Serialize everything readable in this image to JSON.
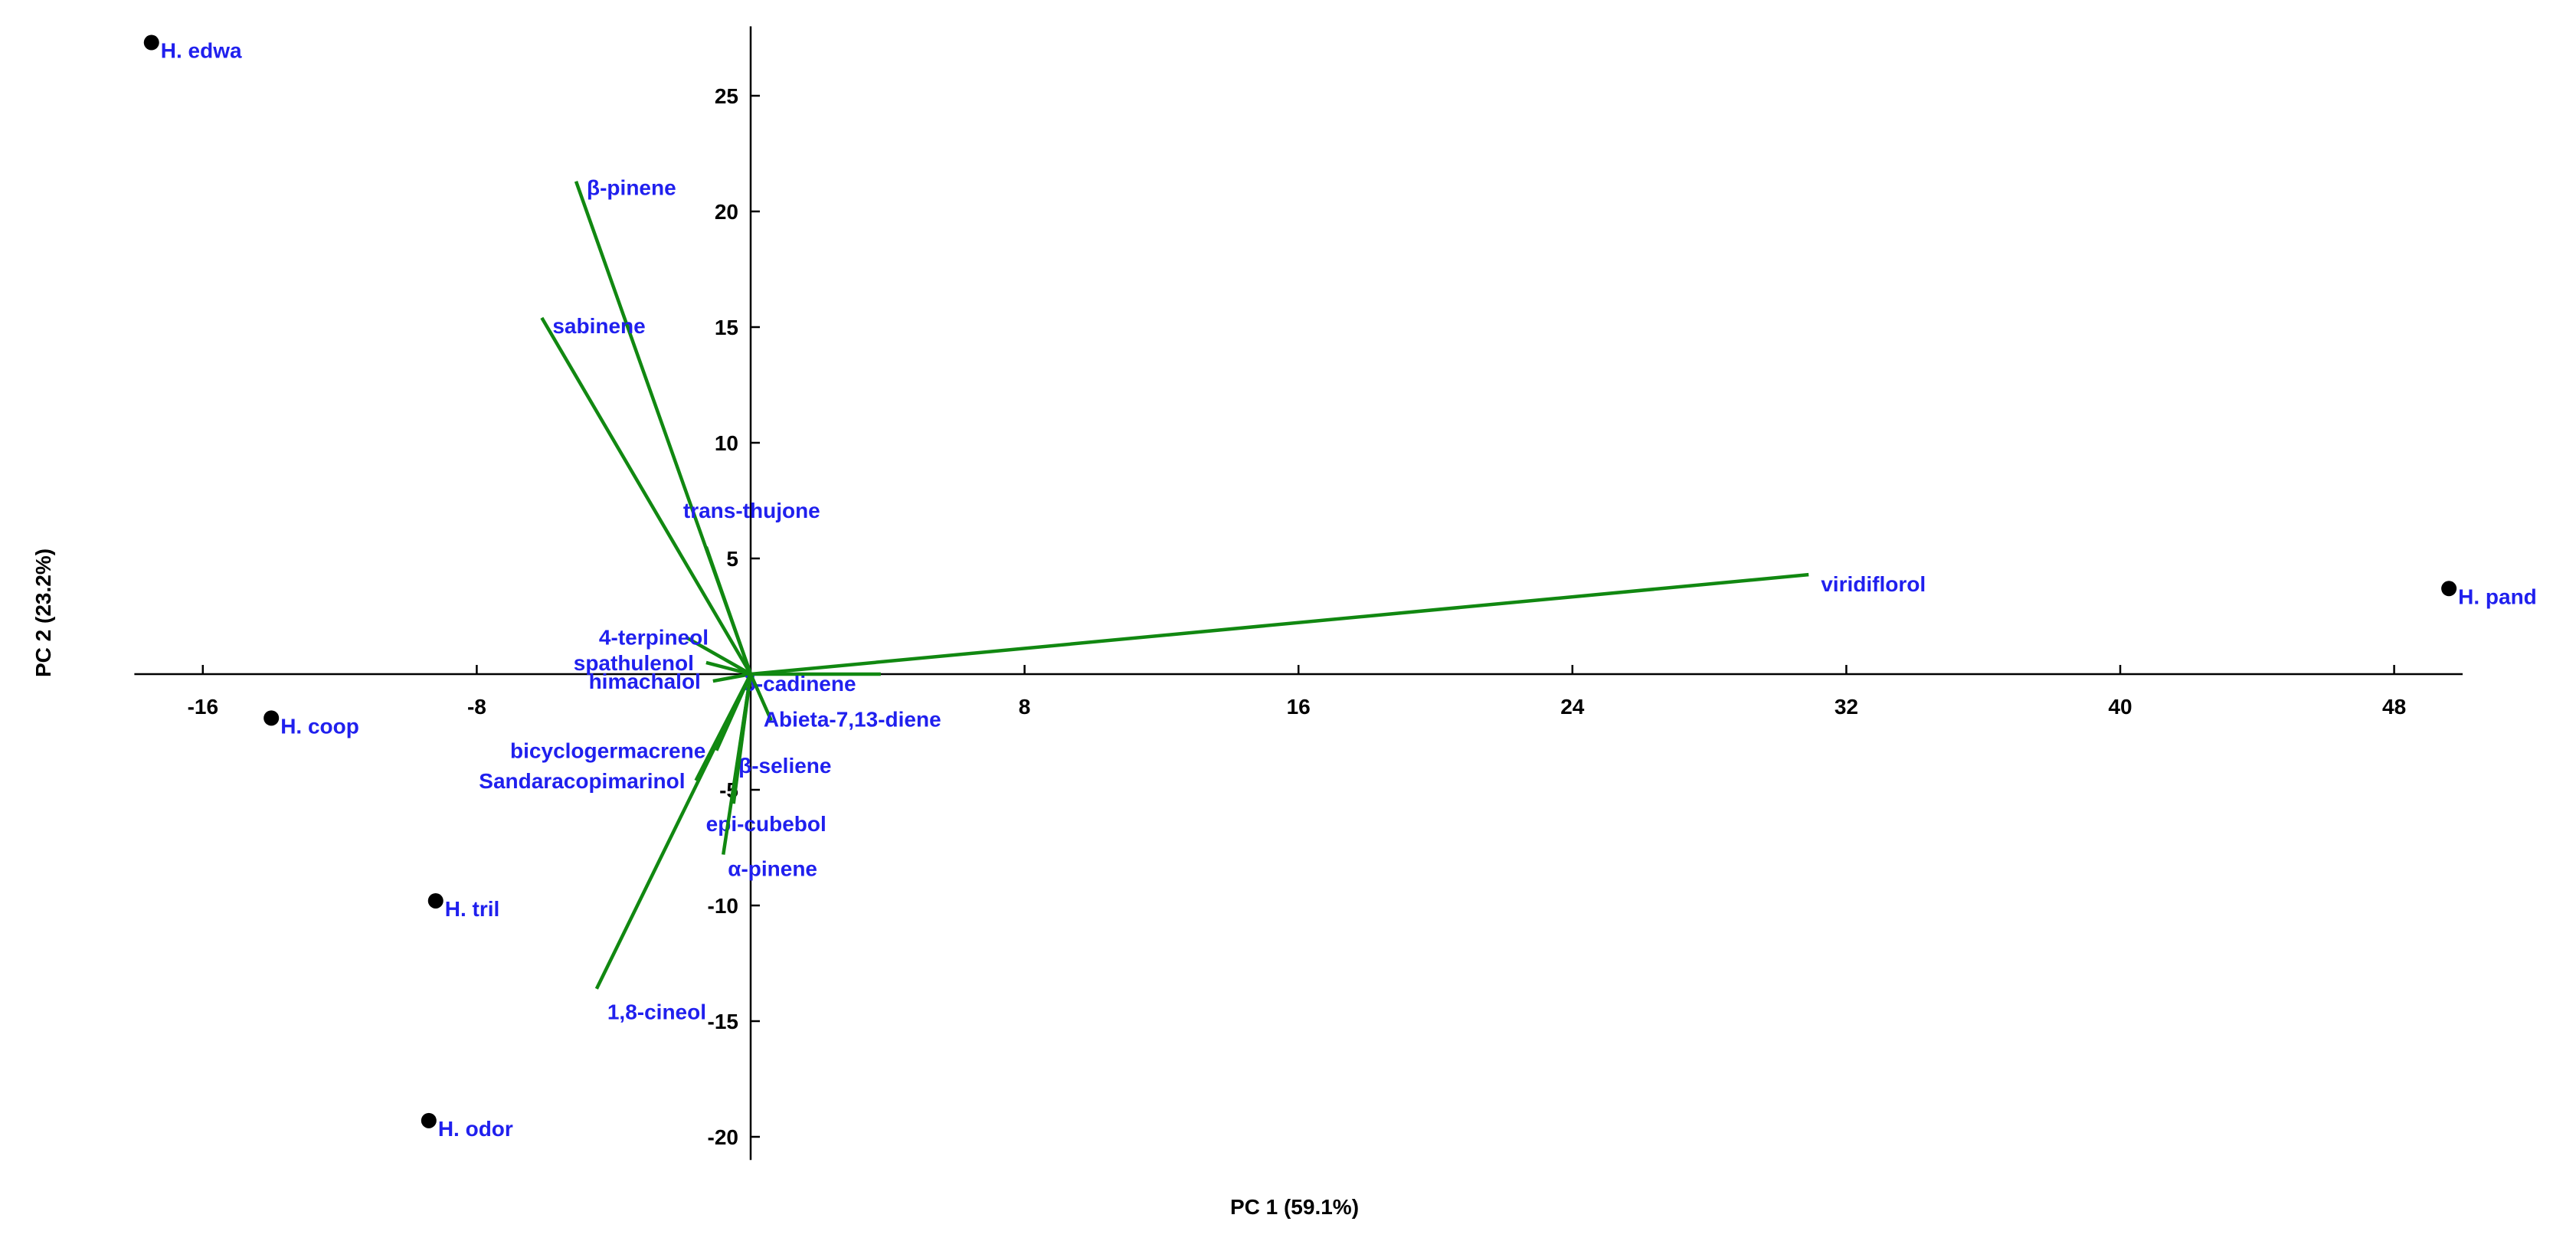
{
  "chart_data": {
    "type": "scatter",
    "subtype": "pca-biplot",
    "xlabel": "PC 1 (59.1%)",
    "ylabel": "PC 2 (23.2%)",
    "xlim": [
      -18,
      50
    ],
    "ylim": [
      -21,
      28
    ],
    "x_ticks": [
      -16,
      -8,
      8,
      16,
      24,
      32,
      40,
      48
    ],
    "y_ticks": [
      -20,
      -15,
      -10,
      -5,
      5,
      10,
      15,
      20,
      25
    ],
    "grid": false,
    "points_color": "#000000",
    "label_color": "#2020ee",
    "vector_color": "#118811",
    "points": [
      {
        "label": "H. edwa",
        "x": -17.5,
        "y": 27.3
      },
      {
        "label": "H. coop",
        "x": -14.0,
        "y": -1.9
      },
      {
        "label": "H. tril",
        "x": -9.2,
        "y": -9.8
      },
      {
        "label": "H. odor",
        "x": -9.4,
        "y": -19.3
      },
      {
        "label": "H. pand",
        "x": 49.6,
        "y": 3.7
      }
    ],
    "vectors": [
      {
        "label": "β-pinene",
        "x": -5.1,
        "y": 21.3
      },
      {
        "label": "sabinene",
        "x": -6.1,
        "y": 15.4
      },
      {
        "label": "trans-thujone",
        "x": -1.3,
        "y": 5.5
      },
      {
        "label": "viridiflorol",
        "x": 30.9,
        "y": 4.3
      },
      {
        "label": "4-terpineol",
        "x": -1.9,
        "y": 1.6
      },
      {
        "label": "spathulenol",
        "x": -1.3,
        "y": 0.5
      },
      {
        "label": "himachalol",
        "x": -1.1,
        "y": -0.3
      },
      {
        "label": "δ-cadinene",
        "x": 3.8,
        "y": 0.0
      },
      {
        "label": "Abieta-7,13-diene",
        "x": 0.6,
        "y": -2.0
      },
      {
        "label": "bicyclogermacrene",
        "x": -1.0,
        "y": -3.3
      },
      {
        "label": "β-seliene",
        "x": -0.4,
        "y": -4.0
      },
      {
        "label": "Sandaracopimarinol",
        "x": -1.6,
        "y": -4.6
      },
      {
        "label": "epi-cubebol",
        "x": -0.5,
        "y": -5.6
      },
      {
        "label": "α-pinene",
        "x": -0.8,
        "y": -7.8
      },
      {
        "label": "1,8-cineol",
        "x": -4.5,
        "y": -13.6
      }
    ]
  }
}
